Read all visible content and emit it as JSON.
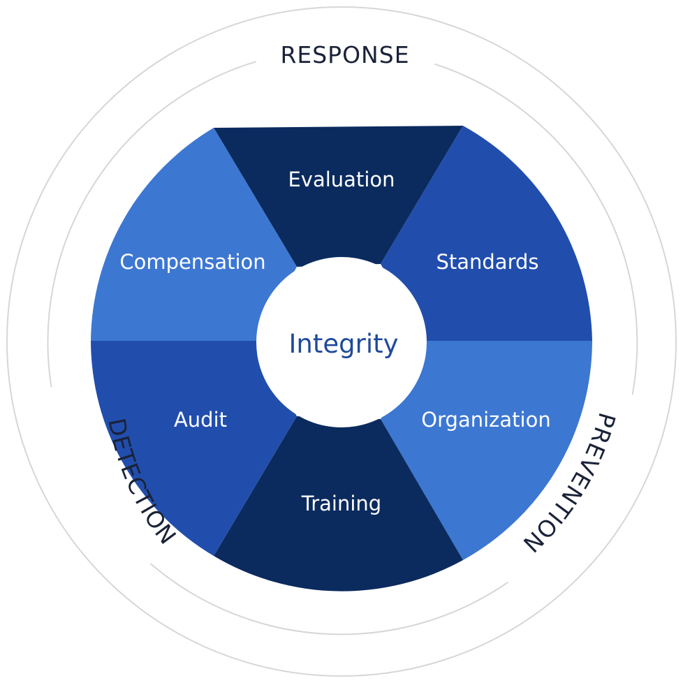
{
  "center": {
    "label": "Integrity"
  },
  "segments": [
    {
      "label": "Evaluation",
      "color": "#0b2b5e"
    },
    {
      "label": "Standards",
      "color": "#214ead"
    },
    {
      "label": "Organization",
      "color": "#3c77d2"
    },
    {
      "label": "Training",
      "color": "#0b2b5e"
    },
    {
      "label": "Audit",
      "color": "#214ead"
    },
    {
      "label": "Compensation",
      "color": "#3c77d2"
    }
  ],
  "ring": {
    "top_label": "RESPONSE",
    "right_label": "PREVENTION",
    "left_label": "DETECTION",
    "line_color": "#d6d6d6"
  }
}
